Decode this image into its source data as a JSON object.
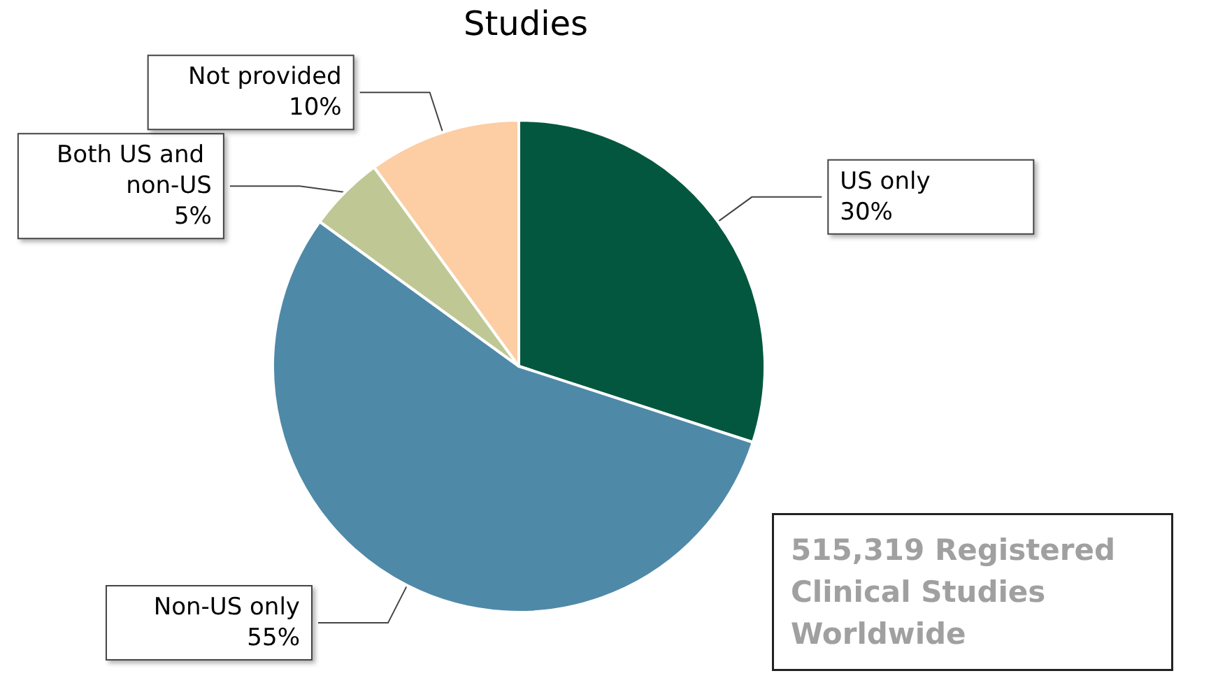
{
  "chart_data": {
    "type": "pie",
    "title": "Studies",
    "categories": [
      "US only",
      "Non-US only",
      "Both US and non-US",
      "Not provided"
    ],
    "values": [
      30,
      55,
      5,
      10
    ],
    "colors": [
      "#03573f",
      "#4f89a8",
      "#bfc894",
      "#fdcda3"
    ],
    "value_labels": [
      "30%",
      "55%",
      "5%",
      "10%"
    ],
    "annotations": [
      "515,319 Registered Clinical Studies Worldwide"
    ],
    "legend": false
  }
}
